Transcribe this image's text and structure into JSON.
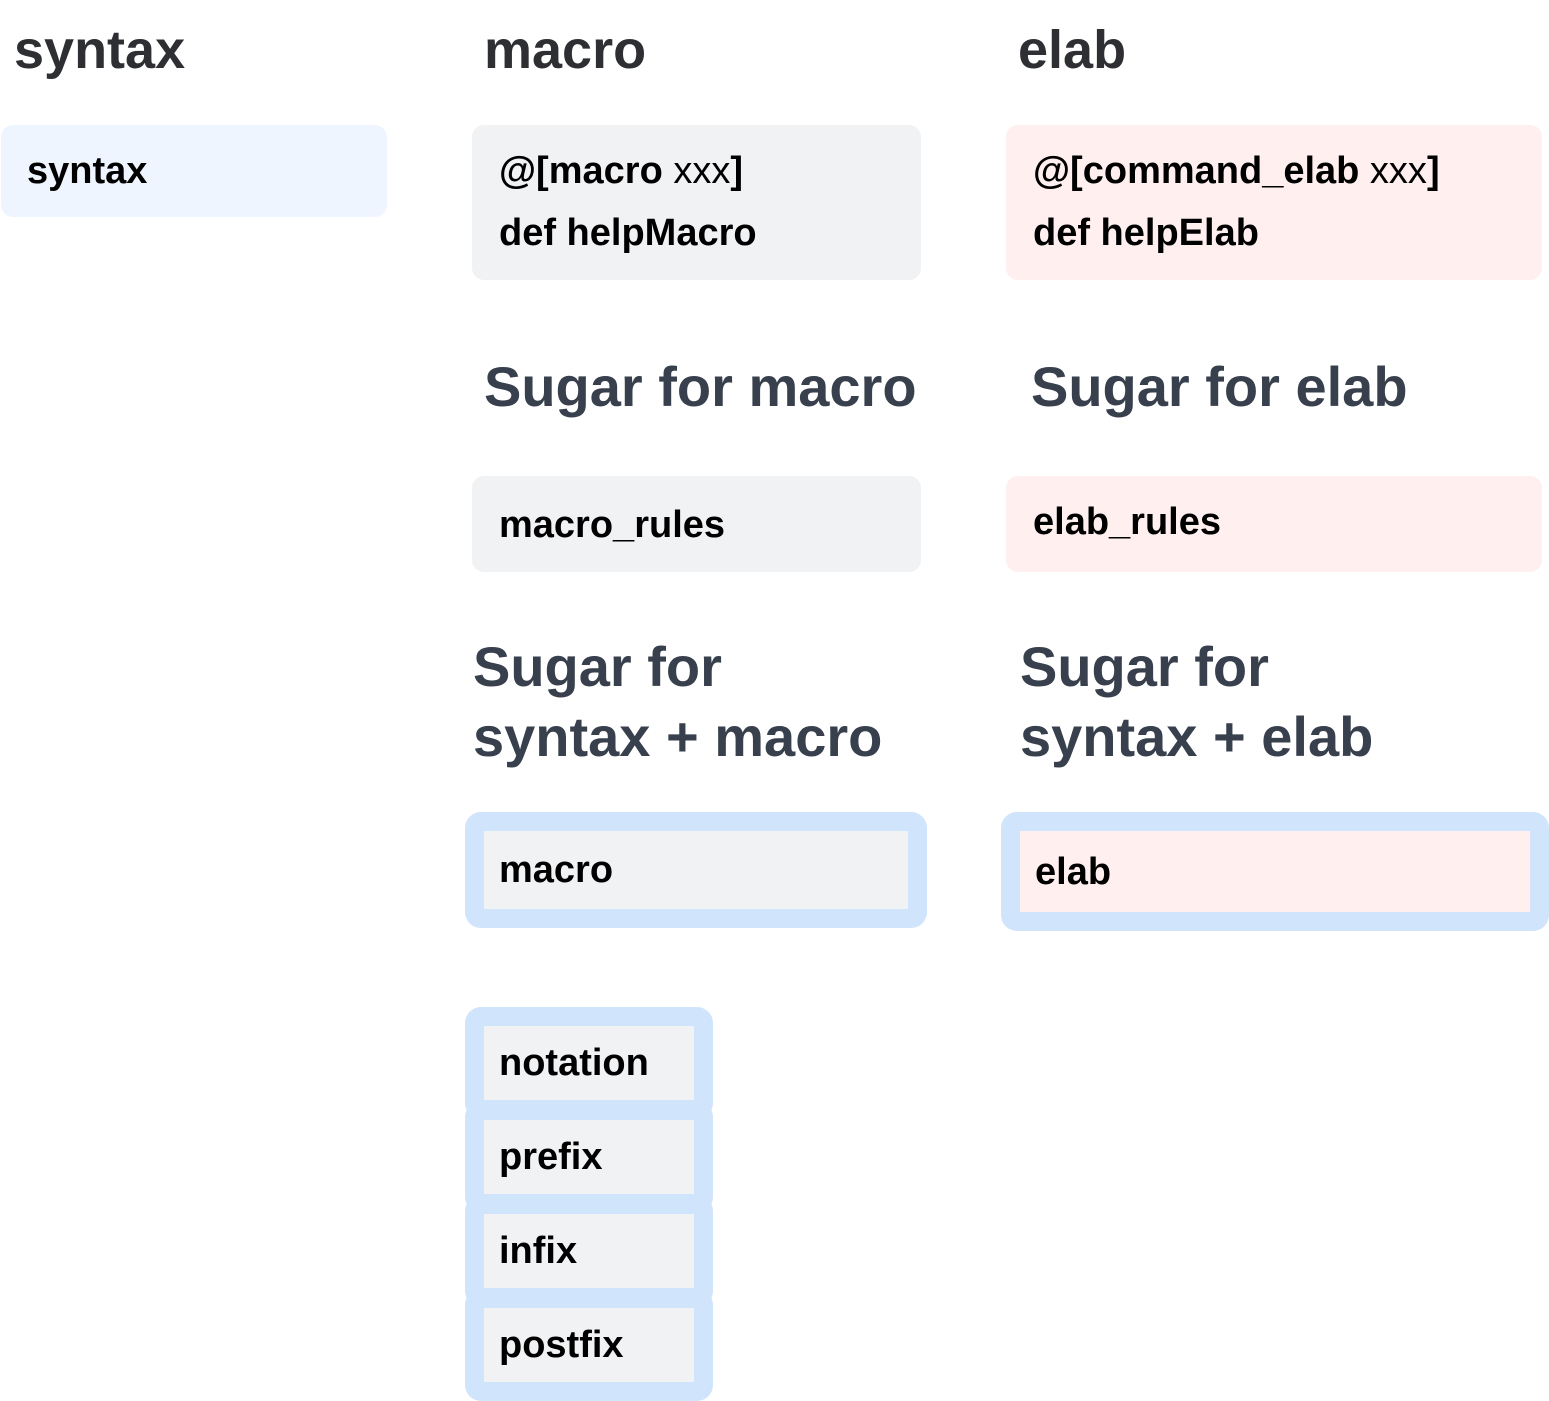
{
  "columns": {
    "syntax": {
      "header": "syntax",
      "box_label": "syntax"
    },
    "macro": {
      "header": "macro",
      "def_box": {
        "attr_prefix": "@[",
        "attr_name": "macro",
        "attr_arg": " xxx",
        "attr_suffix": "]",
        "def_line": "def helpMacro"
      },
      "sugar_header": "Sugar for macro",
      "sugar_box": "macro_rules",
      "syntax_sugar_header_line1": "Sugar for",
      "syntax_sugar_header_line2": "syntax + macro",
      "syntax_sugar_box": "macro",
      "notation_items": [
        "notation",
        "prefix",
        "infix",
        "postfix"
      ]
    },
    "elab": {
      "header": "elab",
      "def_box": {
        "attr_prefix": "@[",
        "attr_name": "command_elab",
        "attr_arg": " xxx",
        "attr_suffix": "]",
        "def_line": "def helpElab"
      },
      "sugar_header": "Sugar for elab",
      "sugar_box": "elab_rules",
      "syntax_sugar_header_line1": "Sugar for",
      "syntax_sugar_header_line2": "syntax + elab",
      "syntax_sugar_box": "elab"
    }
  },
  "colors": {
    "syntax_box": "#eef5ff",
    "macro_box": "#f1f2f4",
    "elab_box": "#fff0ef",
    "highlight_border": "#d0e4fc",
    "header_text": "#2d2f33",
    "section_text": "#38404d"
  }
}
